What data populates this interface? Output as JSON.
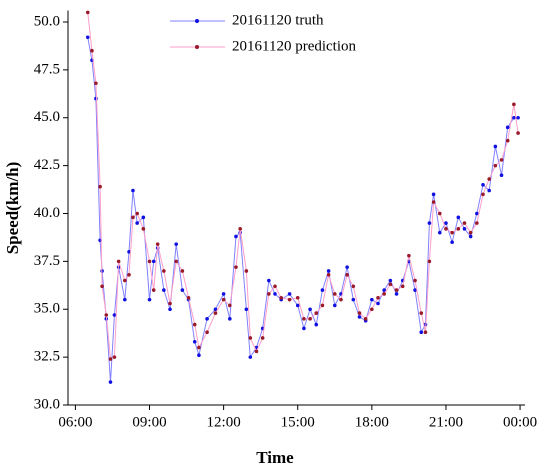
{
  "chart_data": {
    "type": "line",
    "xlabel": "Time",
    "ylabel": "Speed(km/h)",
    "x": [
      6.5,
      6.67,
      6.83,
      7.0,
      7.08,
      7.25,
      7.42,
      7.58,
      7.75,
      8.0,
      8.17,
      8.33,
      8.5,
      8.75,
      9.0,
      9.17,
      9.33,
      9.58,
      9.83,
      10.08,
      10.33,
      10.58,
      10.83,
      11.0,
      11.33,
      11.67,
      12.0,
      12.25,
      12.5,
      12.67,
      12.92,
      13.08,
      13.33,
      13.58,
      13.83,
      14.08,
      14.33,
      14.67,
      15.0,
      15.25,
      15.5,
      15.75,
      16.0,
      16.25,
      16.5,
      16.75,
      17.0,
      17.25,
      17.5,
      17.75,
      18.0,
      18.25,
      18.5,
      18.75,
      19.0,
      19.25,
      19.5,
      19.75,
      20.0,
      20.17,
      20.33,
      20.5,
      20.75,
      21.0,
      21.25,
      21.5,
      21.75,
      22.0,
      22.25,
      22.5,
      22.75,
      23.0,
      23.25,
      23.5,
      23.75,
      23.92
    ],
    "series": [
      {
        "name": "20161120 truth",
        "color": "#8080ff",
        "marker_color": "#1010e0",
        "values": [
          49.2,
          48.0,
          46.0,
          38.6,
          37.0,
          34.5,
          31.2,
          34.7,
          37.2,
          35.5,
          38.0,
          41.2,
          39.5,
          39.8,
          35.5,
          37.5,
          38.2,
          36.0,
          35.0,
          38.4,
          36.0,
          35.5,
          33.3,
          32.6,
          34.5,
          35.0,
          35.8,
          34.5,
          38.8,
          39.0,
          35.0,
          32.5,
          33.0,
          34.0,
          36.5,
          35.8,
          35.5,
          35.8,
          35.2,
          34.0,
          35.0,
          34.2,
          36.0,
          37.0,
          35.2,
          35.8,
          37.2,
          35.5,
          34.6,
          34.4,
          35.5,
          35.3,
          36.0,
          36.5,
          35.8,
          36.5,
          37.5,
          36.0,
          33.8,
          34.2,
          39.5,
          41.0,
          39.0,
          39.5,
          38.5,
          39.8,
          39.2,
          38.8,
          40.0,
          41.5,
          41.2,
          43.5,
          42.0,
          44.5,
          45.0,
          45.0
        ]
      },
      {
        "name": "20161120 prediction",
        "color": "#ff9ec8",
        "marker_color": "#9a1a2a",
        "values": [
          50.5,
          48.5,
          46.8,
          41.4,
          36.2,
          34.7,
          32.4,
          32.5,
          37.5,
          36.5,
          36.8,
          39.8,
          40.0,
          39.2,
          37.5,
          36.0,
          38.4,
          37.0,
          35.3,
          37.5,
          37.0,
          35.6,
          34.2,
          33.0,
          33.8,
          34.8,
          35.5,
          35.2,
          37.2,
          39.2,
          37.0,
          33.5,
          32.8,
          33.5,
          35.8,
          36.2,
          35.6,
          35.5,
          35.6,
          34.5,
          34.5,
          34.8,
          35.2,
          36.8,
          35.8,
          35.5,
          36.8,
          36.2,
          34.8,
          34.5,
          35.0,
          35.6,
          35.8,
          36.3,
          36.0,
          36.2,
          37.8,
          36.5,
          34.8,
          33.8,
          37.5,
          40.6,
          40.0,
          39.2,
          39.0,
          39.2,
          39.5,
          39.0,
          39.5,
          41.0,
          41.8,
          42.5,
          42.8,
          43.8,
          45.7,
          44.2
        ]
      }
    ],
    "xlim": [
      5.7,
      24.2
    ],
    "xticks": [
      {
        "value": 6,
        "label": "06:00"
      },
      {
        "value": 9,
        "label": "09:00"
      },
      {
        "value": 12,
        "label": "12:00"
      },
      {
        "value": 15,
        "label": "15:00"
      },
      {
        "value": 18,
        "label": "18:00"
      },
      {
        "value": 21,
        "label": "21:00"
      },
      {
        "value": 24,
        "label": "00:00"
      }
    ],
    "ylim": [
      30,
      50.6
    ],
    "yticks": [
      {
        "value": 30,
        "label": "30.0"
      },
      {
        "value": 32.5,
        "label": "32.5"
      },
      {
        "value": 35,
        "label": "35.0"
      },
      {
        "value": 37.5,
        "label": "37.5"
      },
      {
        "value": 40,
        "label": "40.0"
      },
      {
        "value": 42.5,
        "label": "42.5"
      },
      {
        "value": 45,
        "label": "45.0"
      },
      {
        "value": 47.5,
        "label": "47.5"
      },
      {
        "value": 50,
        "label": "50.0"
      }
    ],
    "legend": "upper left"
  }
}
